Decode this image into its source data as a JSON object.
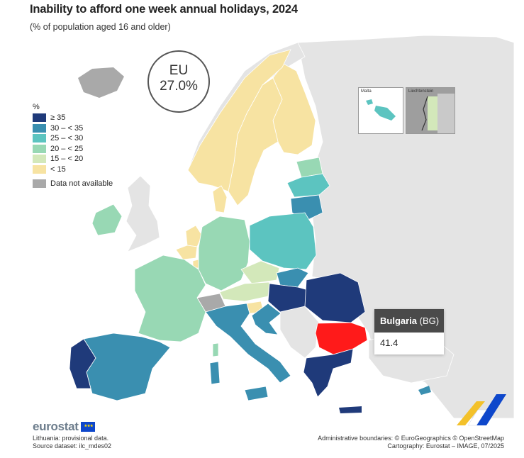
{
  "title": "Inability to afford one week annual holidays, 2024",
  "subtitle": "(% of population aged 16 and older)",
  "eu_summary": {
    "label": "EU",
    "value": "27.0%"
  },
  "legend": {
    "heading": "%",
    "classes": [
      {
        "label": "≥ 35",
        "color": "#1f3a7a"
      },
      {
        "label": "30 – < 35",
        "color": "#3a8fb0"
      },
      {
        "label": "25 – < 30",
        "color": "#5cc4c0"
      },
      {
        "label": "20 – < 25",
        "color": "#98d8b4"
      },
      {
        "label": "15 – < 20",
        "color": "#d3e8ba"
      },
      {
        "label": "< 15",
        "color": "#f7e3a2"
      }
    ],
    "not_available": {
      "label": "Data not available",
      "color": "#a9a9a9"
    }
  },
  "insets": {
    "malta": "Malta",
    "liechtenstein": "Liechtenstein"
  },
  "highlight_color": "#ff1a1a",
  "tooltip": {
    "country": "Bulgaria",
    "code": "(BG)",
    "value": "41.4"
  },
  "footer": {
    "logo": "eurostat",
    "note": "Lithuania: provisional data.",
    "source": "Source dataset: ilc_mdes02",
    "boundaries": "Administrative boundaries: © EuroGeographics © OpenStreetMap",
    "cartography": "Cartography: Eurostat – IMAGE, 07/2025"
  }
}
